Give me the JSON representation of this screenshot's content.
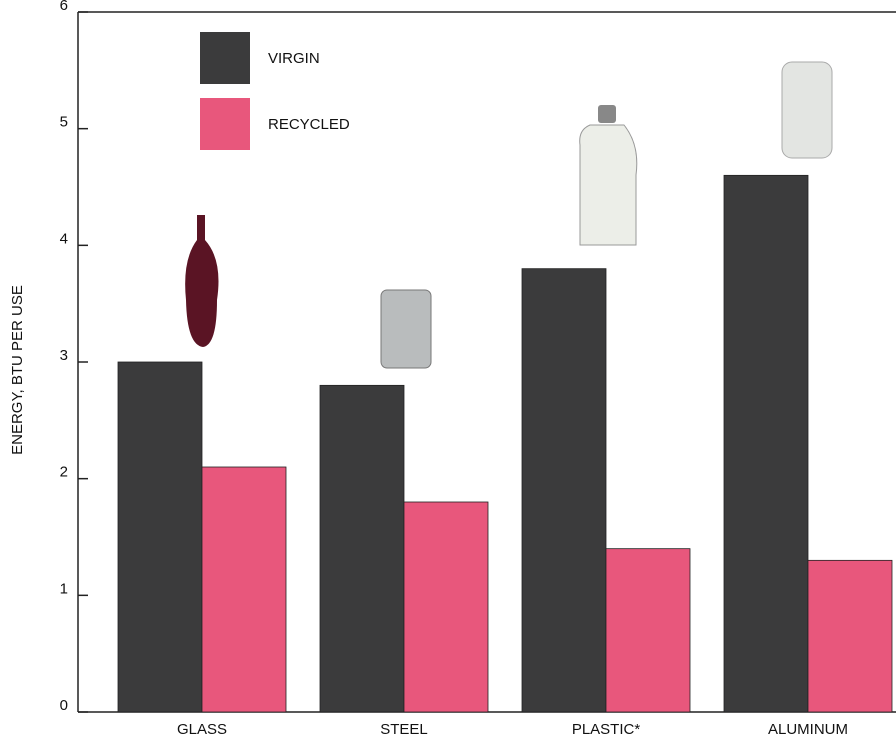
{
  "chart_data": {
    "type": "bar",
    "y_label": "ENERGY, BTU PER USE",
    "categories": [
      "GLASS",
      "STEEL",
      "PLASTIC*",
      "ALUMINUM"
    ],
    "series": [
      {
        "name": "VIRGIN",
        "color": "#3b3b3c",
        "values": [
          3.0,
          2.8,
          3.8,
          4.6
        ]
      },
      {
        "name": "RECYCLED",
        "color": "#e8577c",
        "values": [
          2.1,
          1.8,
          1.4,
          1.3
        ]
      }
    ],
    "ylim": [
      0,
      6
    ],
    "yticks": [
      0,
      1,
      2,
      3,
      4,
      5,
      6
    ]
  }
}
